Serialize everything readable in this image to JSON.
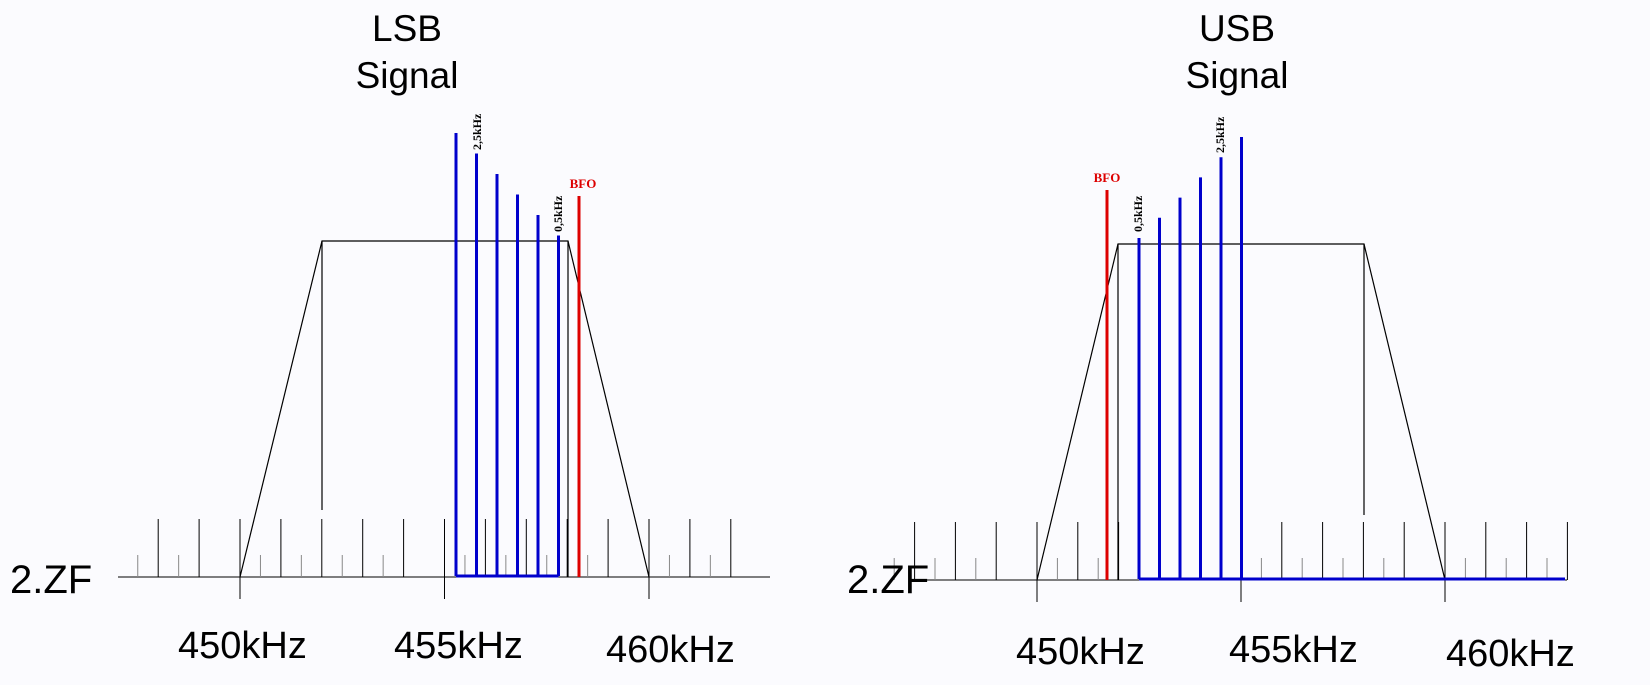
{
  "colors": {
    "background": "#fbfbfe",
    "filter_outline": "#000000",
    "sideband_lines": "#0000cc",
    "bfo_line": "#dd0000",
    "scale_ticks": "#000000",
    "scale_minor_ticks": "#888888"
  },
  "left_panel": {
    "title_line1": "LSB",
    "title_line2": "Signal",
    "scale_label": "2.ZF",
    "freq_labels": [
      "450kHz",
      "455kHz",
      "460kHz"
    ],
    "bfo_label": "BFO",
    "tone_high_label": "2,5kHz",
    "tone_low_label": "0,5kHz",
    "sideband": "lower",
    "tone_count": 6
  },
  "right_panel": {
    "title_line1": "USB",
    "title_line2": "Signal",
    "scale_label": "2.ZF",
    "freq_labels": [
      "450kHz",
      "455kHz",
      "460kHz"
    ],
    "bfo_label": "BFO",
    "tone_high_label": "2,5kHz",
    "tone_low_label": "0,5kHz",
    "sideband": "upper",
    "tone_count": 6
  }
}
